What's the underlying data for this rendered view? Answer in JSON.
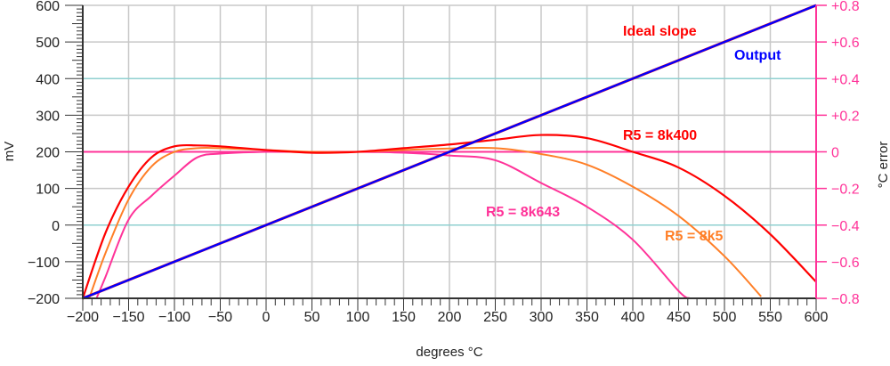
{
  "chart_data": {
    "type": "line",
    "xlabel": "degrees °C",
    "ylabel": "mV",
    "y2label": "°C error",
    "xlim": [
      -200,
      600
    ],
    "ylim": [
      -200,
      600
    ],
    "y2lim": [
      -0.8,
      0.8
    ],
    "grid": true,
    "x_ticks": [
      "−200",
      "−150",
      "−100",
      "−50",
      "0",
      "50",
      "100",
      "150",
      "200",
      "250",
      "300",
      "350",
      "400",
      "450",
      "500",
      "550",
      "600"
    ],
    "y_ticks": [
      "−200",
      "−100",
      "0",
      "100",
      "200",
      "300",
      "400",
      "500",
      "600"
    ],
    "y2_ticks": [
      "−0.8",
      "−0.6",
      "−0.4",
      "−0.2",
      "0",
      "+0.2",
      "+0.4",
      "+0.6",
      "+0.8"
    ],
    "colors": {
      "ideal": "#ff0000",
      "output": "#0000ff",
      "r8k400": "#ff0000",
      "r8k5": "#ff7f27",
      "r8k643": "#ff3399",
      "zero": "#ff3399",
      "grid": "#c8c8c8",
      "grid_accent": "#8fd0d0"
    },
    "series": [
      {
        "name": "Ideal slope",
        "axis": "left",
        "x": [
          -200,
          600
        ],
        "y": [
          -200,
          600
        ]
      },
      {
        "name": "Output",
        "axis": "left",
        "x": [
          -200,
          600
        ],
        "y": [
          -200,
          600
        ]
      },
      {
        "name": "R5 = 8k400",
        "axis": "right",
        "x": [
          -200,
          -175,
          -150,
          -125,
          -100,
          -75,
          -50,
          0,
          50,
          100,
          150,
          200,
          250,
          300,
          350,
          400,
          450,
          500,
          550,
          600
        ],
        "y": [
          -0.8,
          -0.44,
          -0.19,
          -0.03,
          0.03,
          0.035,
          0.03,
          0.01,
          -0.005,
          0,
          0.02,
          0.04,
          0.066,
          0.092,
          0.075,
          0.0,
          -0.086,
          -0.24,
          -0.45,
          -0.71
        ]
      },
      {
        "name": "R5 = 8k5",
        "axis": "right",
        "x": [
          -193,
          -175,
          -150,
          -125,
          -100,
          -75,
          -50,
          0,
          50,
          100,
          150,
          200,
          250,
          300,
          350,
          400,
          450,
          500,
          540
        ],
        "y": [
          -0.8,
          -0.55,
          -0.26,
          -0.08,
          0.0,
          0.02,
          0.02,
          0.01,
          0,
          0,
          0.01,
          0.018,
          0.02,
          -0.012,
          -0.07,
          -0.19,
          -0.35,
          -0.57,
          -0.79
        ]
      },
      {
        "name": "R5 = 8k643",
        "axis": "right",
        "x": [
          -185,
          -175,
          -150,
          -125,
          -100,
          -75,
          -50,
          0,
          50,
          100,
          150,
          200,
          250,
          300,
          350,
          400,
          450,
          462
        ],
        "y": [
          -0.8,
          -0.68,
          -0.37,
          -0.24,
          -0.13,
          -0.03,
          -0.01,
          0,
          0,
          0,
          -0.005,
          -0.02,
          -0.046,
          -0.17,
          -0.3,
          -0.48,
          -0.76,
          -0.8
        ]
      }
    ],
    "annotations": [
      "Ideal slope",
      "Output",
      "R5 = 8k400",
      "R5 = 8k643",
      "R5 = 8k5"
    ]
  }
}
